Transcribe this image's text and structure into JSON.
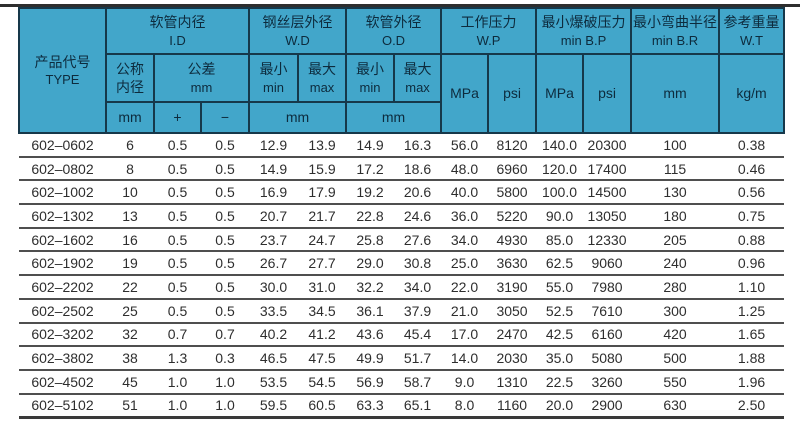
{
  "colors": {
    "header_bg": "#42a6ca",
    "header_text": "#0d2b3d",
    "header_border": "#16384a",
    "body_text": "#2e2e2e",
    "row_line": "#4f4f4f",
    "top_rule": "#2e2e2e"
  },
  "table": {
    "header": {
      "type": {
        "zh": "产品代号",
        "en": "TYPE"
      },
      "groups": [
        {
          "zh": "软管内径",
          "en": "I.D"
        },
        {
          "zh": "钢丝层外径",
          "en": "W.D"
        },
        {
          "zh": "软管外径",
          "en": "O.D"
        },
        {
          "zh": "工作压力",
          "en": "W.P"
        },
        {
          "zh": "最小爆破压力",
          "en": "min B.P"
        },
        {
          "zh": "最小弯曲半径",
          "en": "min B.R"
        },
        {
          "zh": "参考重量",
          "en": "W.T"
        }
      ],
      "sub": {
        "nominal": {
          "line1": "公称",
          "line2": "内径"
        },
        "tolerance": {
          "line1": "公差",
          "line2": "mm"
        },
        "min": {
          "line1": "最小",
          "line2": "min"
        },
        "max": {
          "line1": "最大",
          "line2": "max"
        },
        "unit_mm": "mm",
        "unit_mpa": "MPa",
        "unit_psi": "psi",
        "unit_kgm": "kg/m",
        "plus": "+",
        "minus": "−"
      }
    },
    "rows": [
      [
        "602–0602",
        "6",
        "0.5",
        "0.5",
        "12.9",
        "13.9",
        "14.9",
        "16.3",
        "56.0",
        "8120",
        "140.0",
        "20300",
        "100",
        "0.38"
      ],
      [
        "602–0802",
        "8",
        "0.5",
        "0.5",
        "14.9",
        "15.9",
        "17.2",
        "18.6",
        "48.0",
        "6960",
        "120.0",
        "17400",
        "115",
        "0.46"
      ],
      [
        "602–1002",
        "10",
        "0.5",
        "0.5",
        "16.9",
        "17.9",
        "19.2",
        "20.6",
        "40.0",
        "5800",
        "100.0",
        "14500",
        "130",
        "0.56"
      ],
      [
        "602–1302",
        "13",
        "0.5",
        "0.5",
        "20.7",
        "21.7",
        "22.8",
        "24.6",
        "36.0",
        "5220",
        "90.0",
        "13050",
        "180",
        "0.75"
      ],
      [
        "602–1602",
        "16",
        "0.5",
        "0.5",
        "23.7",
        "24.7",
        "25.8",
        "27.6",
        "34.0",
        "4930",
        "85.0",
        "12330",
        "205",
        "0.88"
      ],
      [
        "602–1902",
        "19",
        "0.5",
        "0.5",
        "26.7",
        "27.7",
        "29.0",
        "30.8",
        "25.0",
        "3630",
        "62.5",
        "9060",
        "240",
        "0.96"
      ],
      [
        "602–2202",
        "22",
        "0.5",
        "0.5",
        "30.0",
        "31.0",
        "32.2",
        "34.0",
        "22.0",
        "3190",
        "55.0",
        "7980",
        "280",
        "1.10"
      ],
      [
        "602–2502",
        "25",
        "0.5",
        "0.5",
        "33.5",
        "34.5",
        "36.1",
        "37.9",
        "21.0",
        "3050",
        "52.5",
        "7610",
        "300",
        "1.25"
      ],
      [
        "602–3202",
        "32",
        "0.7",
        "0.7",
        "40.2",
        "41.2",
        "43.6",
        "45.4",
        "17.0",
        "2470",
        "42.5",
        "6160",
        "420",
        "1.65"
      ],
      [
        "602–3802",
        "38",
        "1.3",
        "0.3",
        "46.5",
        "47.5",
        "49.9",
        "51.7",
        "14.0",
        "2030",
        "35.0",
        "5080",
        "500",
        "1.88"
      ],
      [
        "602–4502",
        "45",
        "1.0",
        "1.0",
        "53.5",
        "54.5",
        "56.9",
        "58.7",
        "9.0",
        "1310",
        "22.5",
        "3260",
        "550",
        "1.96"
      ],
      [
        "602–5102",
        "51",
        "1.0",
        "1.0",
        "59.5",
        "60.5",
        "63.3",
        "65.1",
        "8.0",
        "1160",
        "20.0",
        "2900",
        "630",
        "2.50"
      ]
    ]
  }
}
